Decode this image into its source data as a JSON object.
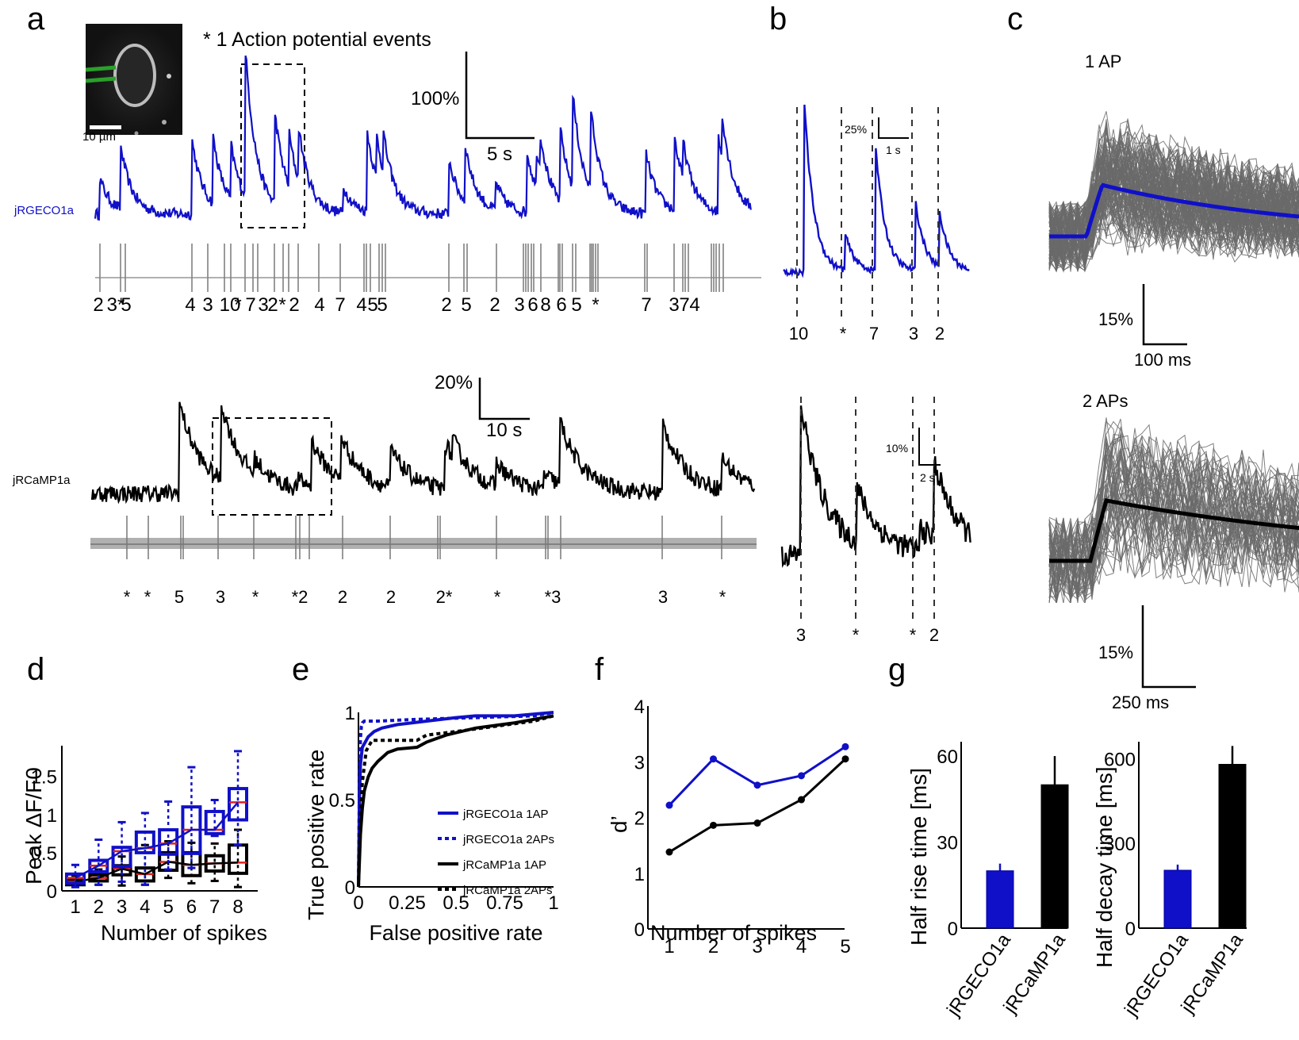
{
  "figure": {
    "panel_letters": [
      "a",
      "b",
      "c",
      "d",
      "e",
      "f",
      "g"
    ],
    "colors": {
      "jRGECO1a": "#1010c8",
      "jRCaMP1a": "#000000",
      "ephys": "#808080",
      "single_trials": "#707070",
      "median": "#dd2020",
      "roi": "#2aa02a"
    }
  },
  "panel_a": {
    "legend_note": "* 1 Action potential events",
    "scalebar_label": "10 µm",
    "top": {
      "trace_label": "jRGECO1a",
      "scale_y": "100%",
      "scale_x": "5 s",
      "spike_labels": [
        "2",
        "3*",
        "5",
        "4",
        "3",
        "10",
        "*",
        "7",
        "3",
        "2",
        "*",
        "2",
        "4",
        "7",
        "4",
        "5",
        "5",
        "2",
        "5",
        "2",
        "3",
        "6",
        "8",
        "6",
        "5",
        "*",
        "7",
        "3",
        "7",
        "4"
      ]
    },
    "bottom": {
      "trace_label": "jRCaMP1a",
      "scale_y": "20%",
      "scale_x": "10 s",
      "spike_labels": [
        "*",
        "*",
        "5",
        "3",
        "*",
        "*2",
        "2",
        "2",
        "2*",
        "*",
        "*3",
        "3",
        "*"
      ]
    }
  },
  "panel_b": {
    "top": {
      "scale_y": "25%",
      "scale_x": "1 s",
      "event_labels": [
        "10",
        "*",
        "7",
        "3",
        "2"
      ]
    },
    "bottom": {
      "scale_y": "10%",
      "scale_x": "2 s",
      "event_labels": [
        "3",
        "*",
        "*",
        "2"
      ]
    }
  },
  "panel_c": {
    "top": {
      "title": "1 AP",
      "scale_y": "15%",
      "scale_x": "100 ms"
    },
    "bottom": {
      "title": "2 APs",
      "scale_y": "15%",
      "scale_x": "250 ms"
    }
  },
  "chart_data": [
    {
      "panel": "d",
      "type": "box",
      "xlabel": "Number of spikes",
      "ylabel": "Peak ΔF/F0",
      "categories": [
        1,
        2,
        3,
        4,
        5,
        6,
        7,
        8
      ],
      "yticks": [
        0,
        0.5,
        1,
        1.5
      ],
      "ylim": [
        0,
        1.85
      ],
      "series": [
        {
          "name": "jRGECO1a",
          "color": "#1010c8",
          "median": [
            0.17,
            0.33,
            0.52,
            0.56,
            0.62,
            0.8,
            0.8,
            1.16
          ],
          "q1": [
            0.1,
            0.25,
            0.32,
            0.5,
            0.48,
            0.49,
            0.75,
            0.93
          ],
          "q3": [
            0.22,
            0.4,
            0.57,
            0.77,
            0.8,
            1.1,
            1.04,
            1.34
          ],
          "whisker_low": [
            0.05,
            0.08,
            0.12,
            0.08,
            0.28,
            0.3,
            0.72,
            0.6
          ],
          "whisker_high": [
            0.34,
            0.67,
            0.9,
            1.02,
            1.17,
            1.62,
            1.19,
            1.83
          ]
        },
        {
          "name": "jRCaMP1a",
          "color": "#000000",
          "median": [
            0.12,
            0.17,
            0.29,
            0.22,
            0.38,
            0.34,
            0.36,
            0.37
          ],
          "q1": [
            0.08,
            0.13,
            0.21,
            0.13,
            0.27,
            0.2,
            0.26,
            0.23
          ],
          "q3": [
            0.15,
            0.21,
            0.33,
            0.3,
            0.5,
            0.5,
            0.46,
            0.6
          ],
          "whisker_low": [
            0.05,
            0.08,
            0.07,
            0.08,
            0.17,
            0.1,
            0.13,
            0.05
          ],
          "whisker_high": [
            0.2,
            0.28,
            0.45,
            0.6,
            0.65,
            0.63,
            0.62,
            0.8
          ]
        }
      ]
    },
    {
      "panel": "e",
      "type": "line",
      "xlabel": "False positive rate",
      "ylabel": "True positive rate",
      "xticks": [
        "0",
        "0.25",
        "0.5",
        "0.75",
        "1"
      ],
      "yticks": [
        "0",
        "0.5",
        "1"
      ],
      "xlim": [
        0,
        1
      ],
      "ylim": [
        0,
        1
      ],
      "legend_position": "center-right",
      "series": [
        {
          "name": "jRGECO1a 1AP",
          "color": "#1010c8",
          "dash": false,
          "x": [
            0,
            0.005,
            0.01,
            0.02,
            0.03,
            0.05,
            0.08,
            0.12,
            0.2,
            0.35,
            0.5,
            0.6,
            0.8,
            1.0
          ],
          "y": [
            0,
            0.5,
            0.7,
            0.8,
            0.82,
            0.86,
            0.89,
            0.91,
            0.93,
            0.95,
            0.97,
            0.98,
            0.98,
            1.0
          ]
        },
        {
          "name": "jRGECO1a 2APs",
          "color": "#1010c8",
          "dash": true,
          "x": [
            0,
            0.005,
            0.01,
            0.015,
            0.02,
            0.03,
            0.1,
            0.3,
            0.6,
            0.9,
            1.0
          ],
          "y": [
            0,
            0.6,
            0.85,
            0.92,
            0.94,
            0.95,
            0.95,
            0.96,
            0.97,
            0.98,
            1.0
          ]
        },
        {
          "name": "jRCaMP1a 1AP",
          "color": "#000000",
          "dash": false,
          "x": [
            0,
            0.01,
            0.02,
            0.03,
            0.05,
            0.07,
            0.1,
            0.15,
            0.2,
            0.3,
            0.35,
            0.45,
            0.6,
            0.8,
            1.0
          ],
          "y": [
            0,
            0.3,
            0.45,
            0.55,
            0.63,
            0.68,
            0.72,
            0.77,
            0.79,
            0.8,
            0.83,
            0.87,
            0.91,
            0.94,
            0.98
          ]
        },
        {
          "name": "jRCaMP1a 2APs",
          "color": "#000000",
          "dash": true,
          "x": [
            0,
            0.01,
            0.02,
            0.04,
            0.07,
            0.3,
            0.35,
            0.5,
            0.7,
            0.9,
            1.0
          ],
          "y": [
            0,
            0.4,
            0.6,
            0.78,
            0.84,
            0.84,
            0.87,
            0.89,
            0.92,
            0.95,
            0.98
          ]
        }
      ]
    },
    {
      "panel": "f",
      "type": "line",
      "xlabel": "Number of spikes",
      "ylabel": "d’",
      "x": [
        1,
        2,
        3,
        4,
        5
      ],
      "yticks": [
        0,
        1,
        2,
        3,
        4
      ],
      "ylim": [
        0,
        4
      ],
      "series": [
        {
          "name": "jRGECO1a",
          "color": "#1010c8",
          "values": [
            2.22,
            3.05,
            2.58,
            2.75,
            3.27
          ]
        },
        {
          "name": "jRCaMP1a",
          "color": "#000000",
          "values": [
            1.38,
            1.86,
            1.9,
            2.32,
            3.05
          ]
        }
      ]
    },
    {
      "panel": "g-rise",
      "type": "bar",
      "ylabel": "Half rise time [ms]",
      "categories": [
        "jRGECO1a",
        "jRCaMP1a"
      ],
      "values": [
        20,
        50
      ],
      "errors": [
        2.5,
        10
      ],
      "colors": [
        "#1010c8",
        "#000000"
      ],
      "yticks": [
        0,
        30,
        60
      ],
      "ylim": [
        0,
        65
      ]
    },
    {
      "panel": "g-decay",
      "type": "bar",
      "ylabel": "Half decay time [ms]",
      "categories": [
        "jRGECO1a",
        "jRCaMP1a"
      ],
      "values": [
        205,
        580
      ],
      "errors": [
        20,
        65
      ],
      "colors": [
        "#1010c8",
        "#000000"
      ],
      "yticks": [
        0,
        300,
        600
      ],
      "ylim": [
        0,
        660
      ]
    }
  ]
}
